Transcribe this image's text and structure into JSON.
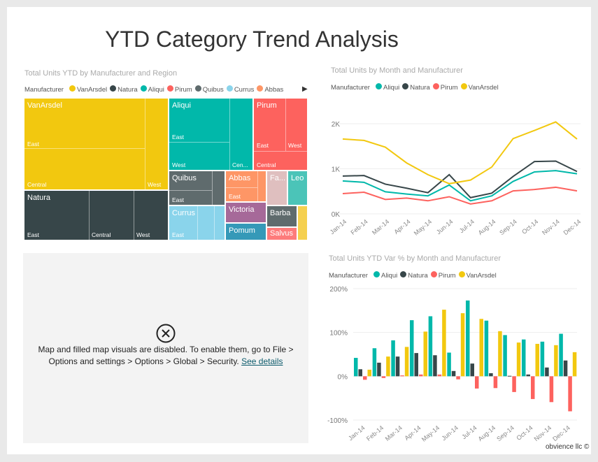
{
  "page": {
    "title": "YTD Category Trend Analysis",
    "footer": "obvience llc ©"
  },
  "treemap": {
    "title": "Total Units YTD by Manufacturer and Region",
    "legend_label": "Manufacturer",
    "legend": [
      {
        "name": "VanArsdel",
        "color": "#f2c80f"
      },
      {
        "name": "Natura",
        "color": "#374649"
      },
      {
        "name": "Aliqui",
        "color": "#01b8aa"
      },
      {
        "name": "Pirum",
        "color": "#fd625e"
      },
      {
        "name": "Quibus",
        "color": "#5f6b6d"
      },
      {
        "name": "Currus",
        "color": "#8ad4eb"
      },
      {
        "name": "Abbas",
        "color": "#fe9666"
      }
    ],
    "labels": {
      "vanarsdel": "VanArsdel",
      "natura": "Natura",
      "aliqui": "Aliqui",
      "pirum": "Pirum",
      "quibus": "Quibus",
      "currus": "Currus",
      "abbas": "Abbas",
      "fa": "Fa...",
      "leo": "Leo",
      "victoria": "Victoria",
      "pomum": "Pomum",
      "barba": "Barba",
      "salvus": "Salvus"
    },
    "regions": {
      "east": "East",
      "central": "Central",
      "west": "West",
      "cen": "Cen..."
    }
  },
  "map": {
    "message": "Map and filled map visuals are disabled. To enable them, go to File > Options and settings > Options > Global > Security.",
    "link": "See details"
  },
  "chart_data": [
    {
      "type": "line",
      "title": "Total Units by Month and Manufacturer",
      "legend_label": "Manufacturer",
      "ylim": [
        0,
        2000
      ],
      "yticks": [
        "0K",
        "1K",
        "2K"
      ],
      "grid": true,
      "legend_placement": "top-left",
      "categories": [
        "Jan-14",
        "Feb-14",
        "Mar-14",
        "Apr-14",
        "May-14",
        "Jun-14",
        "Jul-14",
        "Aug-14",
        "Sep-14",
        "Oct-14",
        "Nov-14",
        "Dec-14"
      ],
      "series": [
        {
          "name": "Aliqui",
          "color": "#01b8aa",
          "values": [
            730,
            700,
            490,
            440,
            400,
            640,
            290,
            400,
            720,
            930,
            960,
            890
          ]
        },
        {
          "name": "Natura",
          "color": "#374649",
          "values": [
            840,
            850,
            660,
            570,
            470,
            870,
            360,
            460,
            830,
            1160,
            1170,
            940
          ]
        },
        {
          "name": "Pirum",
          "color": "#fd625e",
          "values": [
            450,
            480,
            320,
            350,
            290,
            380,
            220,
            290,
            510,
            540,
            590,
            510
          ]
        },
        {
          "name": "VanArsdel",
          "color": "#f2c80f",
          "values": [
            1660,
            1630,
            1480,
            1130,
            870,
            670,
            750,
            1040,
            1670,
            1850,
            2040,
            1660
          ]
        }
      ]
    },
    {
      "type": "bar",
      "title": "Total Units YTD Var % by Month and Manufacturer",
      "legend_label": "Manufacturer",
      "ylim": [
        -100,
        200
      ],
      "yticks": [
        "-100%",
        "0%",
        "100%",
        "200%"
      ],
      "grid": true,
      "legend_placement": "top-left",
      "categories": [
        "Jan-14",
        "Feb-14",
        "Mar-14",
        "Apr-14",
        "May-14",
        "Jun-14",
        "Jul-14",
        "Aug-14",
        "Sep-14",
        "Oct-14",
        "Nov-14",
        "Dec-14"
      ],
      "series": [
        {
          "name": "Aliqui",
          "color": "#01b8aa",
          "values": [
            42,
            64,
            82,
            128,
            137,
            54,
            173,
            127,
            94,
            84,
            79,
            97
          ]
        },
        {
          "name": "Natura",
          "color": "#374649",
          "values": [
            16,
            31,
            45,
            53,
            48,
            12,
            29,
            7,
            1,
            4,
            20,
            36
          ]
        },
        {
          "name": "Pirum",
          "color": "#fd625e",
          "values": [
            -8,
            -4,
            2,
            4,
            4,
            -7,
            -28,
            -27,
            -36,
            -52,
            -59,
            -80
          ]
        },
        {
          "name": "VanArsdel",
          "color": "#f2c80f",
          "values": [
            15,
            45,
            67,
            102,
            152,
            144,
            131,
            103,
            77,
            74,
            71,
            55
          ]
        }
      ]
    }
  ]
}
